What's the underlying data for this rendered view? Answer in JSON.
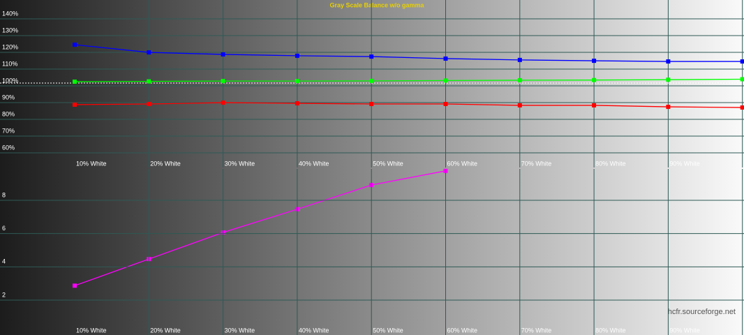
{
  "chart_data": [
    {
      "type": "line",
      "title": "Gray Scale Balance w/o gamma",
      "watermark": "hcfr.sourceforge.net",
      "categories": [
        "10% White",
        "20% White",
        "30% White",
        "40% White",
        "50% White",
        "60% White",
        "70% White",
        "80% White",
        "90% White",
        null
      ],
      "series": [
        {
          "name": "Blue",
          "color": "#0000ff",
          "values": [
            122.9,
            118.3,
            117.1,
            116.3,
            115.8,
            114.6,
            113.8,
            113.3,
            112.9,
            112.9
          ]
        },
        {
          "name": "Green",
          "color": "#00ff00",
          "values": [
            100.8,
            101.0,
            101.2,
            101.2,
            101.3,
            101.5,
            101.7,
            101.8,
            102.0,
            102.3
          ]
        },
        {
          "name": "Red",
          "color": "#ff0000",
          "values": [
            87.1,
            87.5,
            88.3,
            87.9,
            87.5,
            87.5,
            86.7,
            86.7,
            85.8,
            85.4
          ]
        }
      ],
      "ylim": [
        60,
        140
      ],
      "yticks": [
        {
          "value": 60,
          "label": "60%"
        },
        {
          "value": 70,
          "label": "70%"
        },
        {
          "value": 80,
          "label": "80%"
        },
        {
          "value": 90,
          "label": "90%"
        },
        {
          "value": 100,
          "label": "100%"
        },
        {
          "value": 110,
          "label": "110%"
        },
        {
          "value": 120,
          "label": "120%"
        },
        {
          "value": 130,
          "label": "130%"
        },
        {
          "value": 140,
          "label": "140%"
        }
      ],
      "reference_line": 100,
      "grid": true
    },
    {
      "type": "line",
      "categories": [
        "10% White",
        "20% White",
        "30% White",
        "40% White",
        "50% White",
        "60% White",
        "70% White",
        "80% White",
        "90% White",
        null
      ],
      "series": [
        {
          "name": "Gamma",
          "color": "#ff00ff",
          "values": [
            2.7,
            4.3,
            5.9,
            7.3,
            8.75,
            9.6,
            null,
            null,
            null,
            null
          ]
        }
      ],
      "ylim": [
        2,
        8
      ],
      "yticks": [
        2,
        4,
        6,
        8
      ],
      "grid": true
    }
  ]
}
